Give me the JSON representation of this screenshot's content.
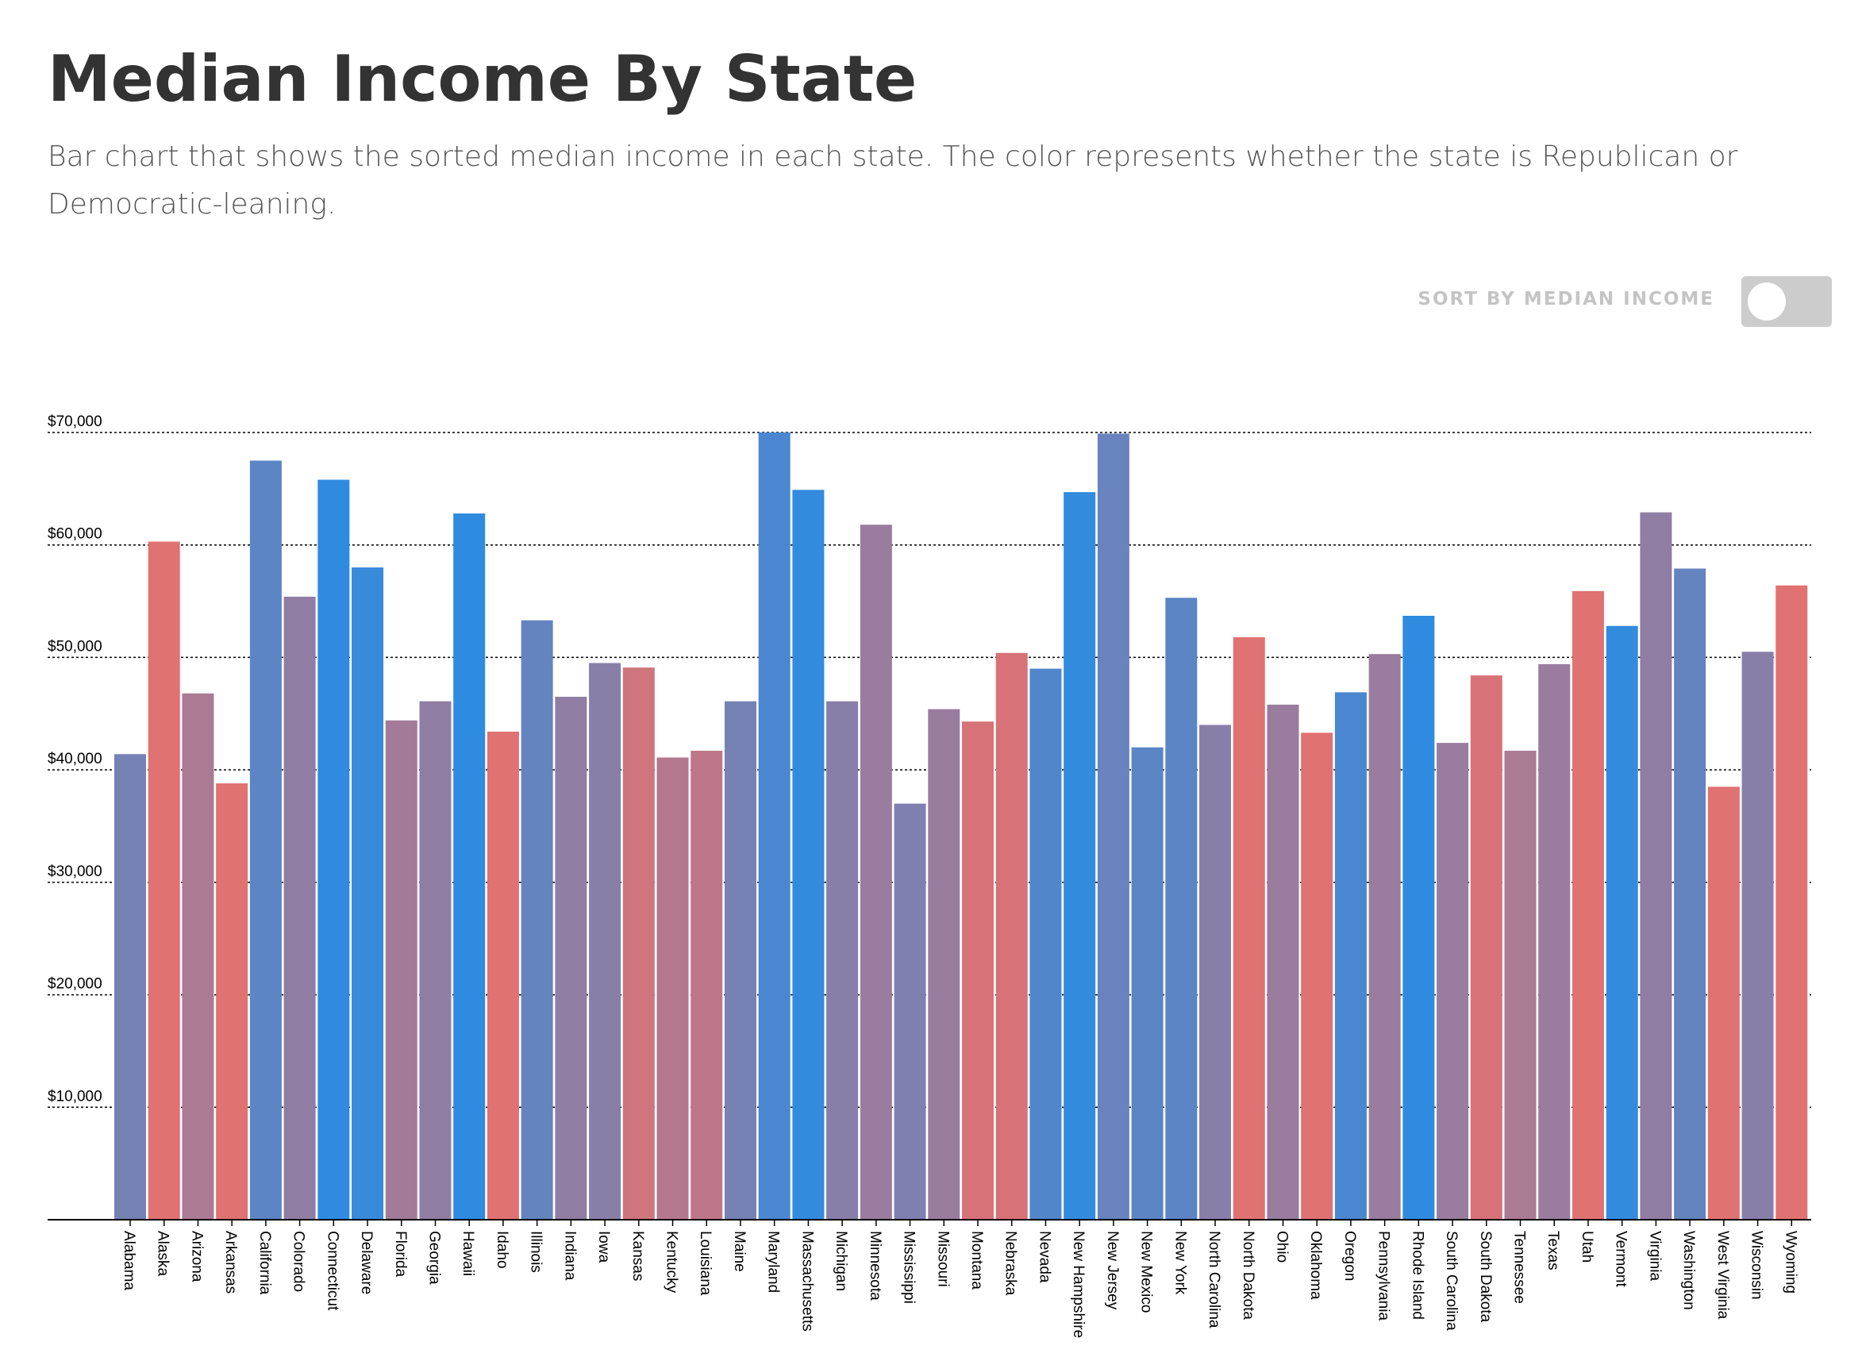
{
  "header": {
    "title": "Median Income By State",
    "subtitle": "Bar chart that shows the sorted median income in each state. The color represents whether the state is Republican or Democratic-leaning."
  },
  "controls": {
    "sort_label": "SORT BY MEDIAN INCOME",
    "sort_enabled": false
  },
  "colors": {
    "democratic": "#2f8be0",
    "republican": "#e07272"
  },
  "chart_data": {
    "type": "bar",
    "title": "",
    "xlabel": "",
    "ylabel": "",
    "ylim": [
      0,
      70000
    ],
    "yticks": [
      10000,
      20000,
      30000,
      40000,
      50000,
      60000,
      70000
    ],
    "ytick_labels": [
      "$10,000",
      "$20,000",
      "$30,000",
      "$40,000",
      "$50,000",
      "$60,000",
      "$70,000"
    ],
    "grid": "horizontal dotted",
    "categories": [
      "Alabama",
      "Alaska",
      "Arizona",
      "Arkansas",
      "California",
      "Colorado",
      "Connecticut",
      "Delaware",
      "Florida",
      "Georgia",
      "Hawaii",
      "Idaho",
      "Illinois",
      "Indiana",
      "Iowa",
      "Kansas",
      "Kentucky",
      "Louisiana",
      "Maine",
      "Maryland",
      "Massachusetts",
      "Michigan",
      "Minnesota",
      "Mississippi",
      "Missouri",
      "Montana",
      "Nebraska",
      "Nevada",
      "New Hampshire",
      "New Jersey",
      "New Mexico",
      "New York",
      "North Carolina",
      "North Dakota",
      "Ohio",
      "Oklahoma",
      "Oregon",
      "Pennsylvania",
      "Rhode Island",
      "South Carolina",
      "South Dakota",
      "Tennessee",
      "Texas",
      "Utah",
      "Vermont",
      "Virginia",
      "Washington",
      "West Virginia",
      "Wisconsin",
      "Wyoming"
    ],
    "values": [
      41400,
      60300,
      46800,
      38800,
      67500,
      55400,
      65800,
      58000,
      44400,
      46100,
      62800,
      43400,
      53300,
      46500,
      49500,
      49100,
      41100,
      41700,
      46100,
      70000,
      64900,
      46100,
      61800,
      37000,
      45400,
      44300,
      50400,
      49000,
      64700,
      69900,
      42000,
      55300,
      44000,
      51800,
      45800,
      43300,
      46900,
      50300,
      53700,
      42400,
      48400,
      41700,
      49400,
      55900,
      52800,
      62900,
      57900,
      38500,
      50500,
      56400
    ],
    "lean": [
      0.6,
      0.0,
      0.3,
      0.0,
      0.75,
      0.45,
      1.0,
      0.95,
      0.35,
      0.45,
      1.0,
      0.0,
      0.7,
      0.45,
      0.5,
      0.1,
      0.25,
      0.2,
      0.6,
      0.85,
      0.98,
      0.5,
      0.4,
      0.55,
      0.4,
      0.05,
      0.05,
      0.8,
      0.98,
      0.68,
      0.75,
      0.75,
      0.5,
      0.0,
      0.4,
      0.0,
      0.85,
      0.4,
      1.0,
      0.4,
      0.05,
      0.3,
      0.4,
      0.0,
      0.98,
      0.45,
      0.7,
      0.0,
      0.5,
      0.0
    ]
  }
}
